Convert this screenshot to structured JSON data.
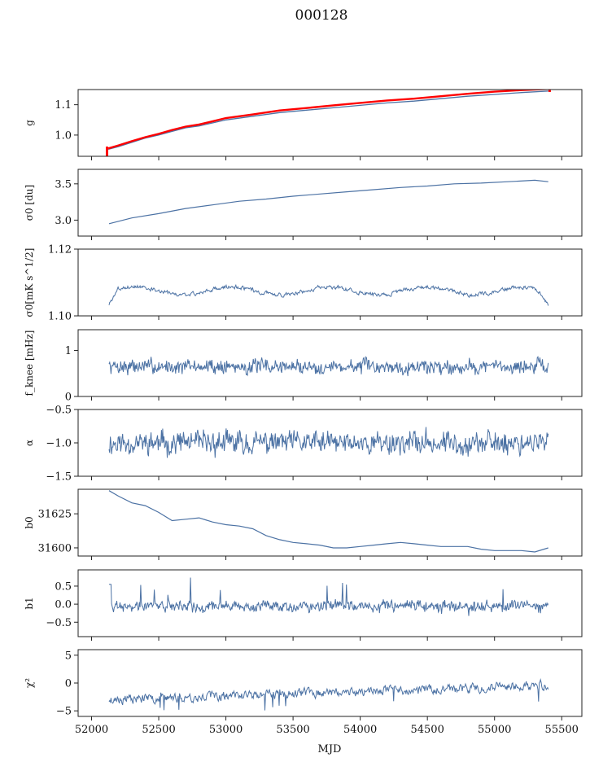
{
  "suptitle": "000128",
  "xlabel": "MJD",
  "xlim": [
    51900,
    55650
  ],
  "xticks": [
    52000,
    52500,
    53000,
    53500,
    54000,
    54500,
    55000,
    55500
  ],
  "colors": {
    "series": "#4c72a4",
    "highlight": "#ff0000",
    "axes": "#222222"
  },
  "chart_data": [
    {
      "type": "line",
      "ylabel": "g",
      "ylim": [
        0.93,
        1.15
      ],
      "yticks": [
        1.0,
        1.1
      ],
      "ytick_labels": [
        "1.0",
        "1.1"
      ],
      "x": [
        52125,
        52200,
        52300,
        52400,
        52500,
        52600,
        52700,
        52800,
        52900,
        53000,
        53200,
        53400,
        53600,
        53800,
        54000,
        54200,
        54400,
        54600,
        54800,
        55000,
        55200,
        55400
      ],
      "series": [
        {
          "color": "#4c72a4",
          "values": [
            0.953,
            0.962,
            0.976,
            0.99,
            1.0,
            1.012,
            1.024,
            1.03,
            1.04,
            1.05,
            1.062,
            1.074,
            1.082,
            1.09,
            1.098,
            1.106,
            1.112,
            1.12,
            1.128,
            1.134,
            1.14,
            1.145
          ]
        },
        {
          "color": "#ff0000",
          "values": [
            0.956,
            0.966,
            0.98,
            0.993,
            1.004,
            1.017,
            1.028,
            1.035,
            1.045,
            1.056,
            1.068,
            1.081,
            1.089,
            1.098,
            1.106,
            1.114,
            1.12,
            1.128,
            1.136,
            1.143,
            1.148,
            1.152
          ]
        }
      ],
      "spikes": [
        {
          "x": 52115,
          "from": 0.93,
          "to": 0.962
        },
        {
          "x": 55410,
          "from": 1.142,
          "to": 1.152
        }
      ]
    },
    {
      "type": "line",
      "ylabel": "σ0 [du]",
      "ylim": [
        2.78,
        3.7
      ],
      "yticks": [
        3.0,
        3.5
      ],
      "ytick_labels": [
        "3.0",
        "3.5"
      ],
      "x": [
        52130,
        52300,
        52500,
        52700,
        52900,
        53100,
        53300,
        53500,
        53700,
        53900,
        54100,
        54300,
        54500,
        54700,
        54900,
        55100,
        55300,
        55400
      ],
      "values": [
        2.95,
        3.03,
        3.09,
        3.16,
        3.21,
        3.26,
        3.29,
        3.33,
        3.36,
        3.39,
        3.42,
        3.45,
        3.47,
        3.5,
        3.51,
        3.53,
        3.55,
        3.53
      ]
    },
    {
      "type": "line",
      "ylabel": "σ0[mK s^1/2]",
      "ylim": [
        1.1,
        1.12
      ],
      "yticks": [
        1.1,
        1.12
      ],
      "ytick_labels": [
        "1.10",
        "1.12"
      ],
      "noise": {
        "x0": 52130,
        "x1": 55400,
        "n": 680,
        "base": 1.1075,
        "amp": 0.0025,
        "seed": 3,
        "shape": "sigma"
      }
    },
    {
      "type": "line",
      "ylabel": "f_knee [mHz]",
      "ylim": [
        0,
        1.45
      ],
      "yticks": [
        0,
        1
      ],
      "ytick_labels": [
        "0",
        "1"
      ],
      "noise": {
        "x0": 52130,
        "x1": 55400,
        "n": 680,
        "base": 0.65,
        "amp": 0.28,
        "seed": 7,
        "shape": "flat"
      }
    },
    {
      "type": "line",
      "ylabel": "α",
      "ylim": [
        -1.5,
        -0.5
      ],
      "yticks": [
        -1.5,
        -1.0,
        -0.5
      ],
      "ytick_labels": [
        "−1.5",
        "−1.0",
        "−0.5"
      ],
      "noise": {
        "x0": 52130,
        "x1": 55400,
        "n": 680,
        "base": -1.0,
        "amp": 0.3,
        "seed": 11,
        "shape": "flat"
      }
    },
    {
      "type": "line",
      "ylabel": "b0",
      "ylim": [
        31594,
        31643
      ],
      "yticks": [
        31600,
        31625
      ],
      "ytick_labels": [
        "31600",
        "31625"
      ],
      "x": [
        52130,
        52200,
        52300,
        52400,
        52500,
        52600,
        52700,
        52800,
        52900,
        53000,
        53100,
        53200,
        53300,
        53400,
        53500,
        53600,
        53700,
        53800,
        53900,
        54000,
        54100,
        54200,
        54300,
        54400,
        54500,
        54600,
        54700,
        54800,
        54900,
        55000,
        55100,
        55200,
        55300,
        55400
      ],
      "values": [
        31642,
        31638,
        31633,
        31631,
        31626,
        31620,
        31621,
        31622,
        31619,
        31617,
        31616,
        31614,
        31609,
        31606,
        31604,
        31603,
        31602,
        31600,
        31600,
        31601,
        31602,
        31603,
        31604,
        31603,
        31602,
        31601,
        31601,
        31601,
        31599,
        31598,
        31598,
        31598,
        31597,
        31600
      ]
    },
    {
      "type": "line",
      "ylabel": "b1",
      "ylim": [
        -0.9,
        0.95
      ],
      "yticks": [
        -0.5,
        0.0,
        0.5
      ],
      "ytick_labels": [
        "−0.5",
        "0.0",
        "0.5"
      ],
      "noise": {
        "x0": 52130,
        "x1": 55400,
        "n": 680,
        "base": -0.05,
        "amp": 0.28,
        "seed": 19,
        "shape": "b1"
      }
    },
    {
      "type": "line",
      "ylabel": "χ²",
      "ylim": [
        -6,
        6
      ],
      "yticks": [
        -5,
        0,
        5
      ],
      "ytick_labels": [
        "−5",
        "0",
        "5"
      ],
      "noise": {
        "x0": 52130,
        "x1": 55400,
        "n": 680,
        "base": -1.8,
        "amp": 1.5,
        "seed": 23,
        "shape": "chi"
      }
    }
  ]
}
